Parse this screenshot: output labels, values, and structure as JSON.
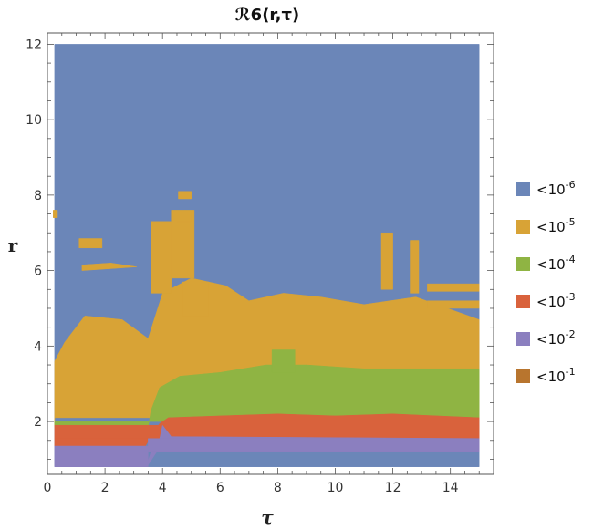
{
  "chart_data": {
    "type": "heatmap",
    "title": "ℛ6(r,τ)",
    "xlabel": "τ",
    "ylabel": "r",
    "xlim": [
      0,
      15.5
    ],
    "ylim": [
      0.6,
      12.3
    ],
    "data_extent": {
      "x": [
        0.25,
        15
      ],
      "y": [
        0.8,
        12
      ]
    },
    "xticks": [
      0,
      2,
      4,
      6,
      8,
      10,
      12,
      14
    ],
    "yticks": [
      2,
      4,
      6,
      8,
      10,
      12
    ],
    "grid": false,
    "legend_position": "right",
    "legend": [
      {
        "label": "<10",
        "exp": "-6",
        "color": "#6b86b8"
      },
      {
        "label": "<10",
        "exp": "-5",
        "color": "#d8a336"
      },
      {
        "label": "<10",
        "exp": "-4",
        "color": "#8fb443"
      },
      {
        "label": "<10",
        "exp": "-3",
        "color": "#d9623c"
      },
      {
        "label": "<10",
        "exp": "-2",
        "color": "#8b7fbf"
      },
      {
        "label": "<10",
        "exp": "-1",
        "color": "#b8752e"
      }
    ],
    "regions": [
      {
        "level": 0,
        "points": [
          [
            0.25,
            0.8
          ],
          [
            15,
            0.8
          ],
          [
            15,
            12
          ],
          [
            0.25,
            12
          ]
        ]
      },
      {
        "level": 1,
        "points": [
          [
            0.25,
            1.9
          ],
          [
            0.25,
            3.6
          ],
          [
            0.6,
            4.1
          ],
          [
            1.3,
            4.8
          ],
          [
            2.6,
            4.7
          ],
          [
            3.5,
            4.2
          ],
          [
            4.0,
            5.4
          ],
          [
            5.0,
            5.8
          ],
          [
            6.2,
            5.6
          ],
          [
            7.0,
            5.2
          ],
          [
            8.2,
            5.4
          ],
          [
            9.5,
            5.3
          ],
          [
            11.0,
            5.1
          ],
          [
            12.8,
            5.3
          ],
          [
            15,
            4.7
          ],
          [
            15,
            2.1
          ],
          [
            0.25,
            2.1
          ]
        ]
      },
      {
        "level": 1,
        "points": [
          [
            4.3,
            5.8
          ],
          [
            5.1,
            5.8
          ],
          [
            5.1,
            7.6
          ],
          [
            4.3,
            7.6
          ]
        ]
      },
      {
        "level": 1,
        "points": [
          [
            3.6,
            5.4
          ],
          [
            4.3,
            5.4
          ],
          [
            4.3,
            7.3
          ],
          [
            3.6,
            7.3
          ]
        ]
      },
      {
        "level": 1,
        "points": [
          [
            15,
            5.45
          ],
          [
            15,
            5.65
          ],
          [
            13.2,
            5.65
          ],
          [
            13.2,
            5.45
          ]
        ]
      },
      {
        "level": 1,
        "points": [
          [
            15,
            5.0
          ],
          [
            15,
            5.2
          ],
          [
            13.2,
            5.2
          ],
          [
            13.2,
            5.0
          ]
        ]
      },
      {
        "level": 1,
        "points": [
          [
            1.2,
            6.0
          ],
          [
            2.2,
            6.05
          ],
          [
            3.1,
            6.1
          ],
          [
            2.2,
            6.2
          ],
          [
            1.2,
            6.15
          ]
        ]
      },
      {
        "level": 1,
        "points": [
          [
            1.1,
            6.6
          ],
          [
            1.9,
            6.6
          ],
          [
            1.9,
            6.85
          ],
          [
            1.1,
            6.85
          ]
        ]
      },
      {
        "level": 1,
        "points": [
          [
            4.5,
            7.3
          ],
          [
            5.0,
            7.3
          ],
          [
            5.0,
            7.55
          ],
          [
            4.5,
            7.55
          ]
        ]
      },
      {
        "level": 1,
        "points": [
          [
            4.55,
            7.9
          ],
          [
            5.0,
            7.9
          ],
          [
            5.0,
            8.1
          ],
          [
            4.55,
            8.1
          ]
        ]
      },
      {
        "level": 1,
        "points": [
          [
            4.7,
            4.8
          ],
          [
            5.6,
            4.8
          ],
          [
            5.6,
            5.7
          ],
          [
            4.7,
            5.7
          ]
        ]
      },
      {
        "level": 1,
        "points": [
          [
            11.6,
            5.5
          ],
          [
            12.0,
            5.5
          ],
          [
            12.0,
            7.0
          ],
          [
            11.6,
            7.0
          ]
        ]
      },
      {
        "level": 1,
        "points": [
          [
            12.6,
            5.4
          ],
          [
            12.9,
            5.4
          ],
          [
            12.9,
            6.8
          ],
          [
            12.6,
            6.8
          ]
        ]
      },
      {
        "level": 1,
        "points": [
          [
            0.2,
            7.4
          ],
          [
            0.35,
            7.4
          ],
          [
            0.35,
            7.6
          ],
          [
            0.2,
            7.6
          ]
        ]
      },
      {
        "level": 2,
        "points": [
          [
            0.25,
            1.85
          ],
          [
            3.5,
            1.85
          ],
          [
            3.6,
            2.3
          ],
          [
            3.9,
            2.9
          ],
          [
            4.6,
            3.2
          ],
          [
            6.0,
            3.3
          ],
          [
            7.6,
            3.5
          ],
          [
            9.0,
            3.5
          ],
          [
            11.0,
            3.4
          ],
          [
            12.5,
            3.4
          ],
          [
            15,
            3.4
          ],
          [
            15,
            2.0
          ],
          [
            0.25,
            2.0
          ]
        ]
      },
      {
        "level": 2,
        "points": [
          [
            7.8,
            3.3
          ],
          [
            8.6,
            3.3
          ],
          [
            8.6,
            3.9
          ],
          [
            7.8,
            3.9
          ]
        ]
      },
      {
        "level": 3,
        "points": [
          [
            0.25,
            1.35
          ],
          [
            3.4,
            1.35
          ],
          [
            3.6,
            1.6
          ],
          [
            3.9,
            1.95
          ],
          [
            4.2,
            2.1
          ],
          [
            6.0,
            2.15
          ],
          [
            8.0,
            2.2
          ],
          [
            10.0,
            2.15
          ],
          [
            12.0,
            2.2
          ],
          [
            15,
            2.1
          ],
          [
            15,
            1.55
          ],
          [
            4.0,
            1.55
          ],
          [
            0.25,
            1.55
          ]
        ]
      },
      {
        "level": 3,
        "points": [
          [
            0.25,
            1.55
          ],
          [
            15,
            1.55
          ],
          [
            15,
            1.9
          ],
          [
            0.25,
            1.9
          ]
        ]
      },
      {
        "level": 4,
        "points": [
          [
            0.25,
            0.85
          ],
          [
            3.5,
            0.85
          ],
          [
            3.8,
            1.2
          ],
          [
            4.0,
            1.9
          ],
          [
            4.3,
            1.6
          ],
          [
            15,
            1.55
          ],
          [
            15,
            1.2
          ],
          [
            3.6,
            1.2
          ],
          [
            3.45,
            0.85
          ]
        ]
      },
      {
        "level": 4,
        "points": [
          [
            0.25,
            0.8
          ],
          [
            3.5,
            0.8
          ],
          [
            3.5,
            1.35
          ],
          [
            0.25,
            1.35
          ]
        ]
      },
      {
        "level": 4,
        "points": [
          [
            3.5,
            1.2
          ],
          [
            15,
            1.2
          ],
          [
            15,
            1.55
          ],
          [
            3.5,
            1.55
          ]
        ]
      }
    ]
  }
}
